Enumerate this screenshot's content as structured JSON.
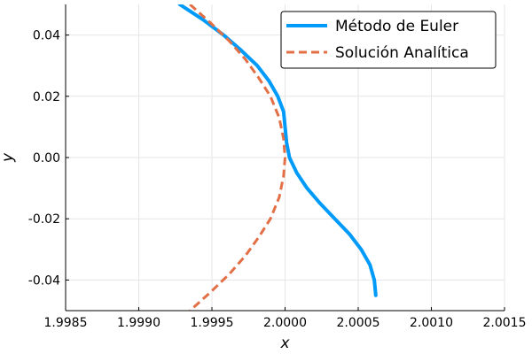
{
  "chart_data": {
    "type": "line",
    "title": "",
    "xlabel": "x",
    "ylabel": "y",
    "xlim": [
      1.9985,
      2.0015
    ],
    "ylim": [
      -0.05,
      0.05
    ],
    "x_ticks": [
      1.9985,
      1.999,
      1.9995,
      2.0,
      2.0005,
      2.001,
      2.0015
    ],
    "x_tick_labels": [
      "1.9985",
      "1.9990",
      "1.9995",
      "2.0000",
      "2.0005",
      "2.0010",
      "2.0015"
    ],
    "y_ticks": [
      -0.04,
      -0.02,
      0.0,
      0.02,
      0.04
    ],
    "y_tick_labels": [
      "-0.04",
      "-0.02",
      "0.00",
      "0.02",
      "0.04"
    ],
    "grid": true,
    "legend_position": "top-right",
    "series": [
      {
        "name": "Método de Euler",
        "color": "#009af9",
        "style": "solid",
        "x": [
          1.99928,
          1.99944,
          1.99958,
          1.9997,
          1.99981,
          1.99989,
          1.99995,
          1.99999,
          2.0,
          2.00001,
          2.00003,
          2.00008,
          2.00015,
          2.00024,
          2.00034,
          2.00044,
          2.00052,
          2.00058,
          2.00061,
          2.00062
        ],
        "y": [
          0.05,
          0.045,
          0.04,
          0.035,
          0.03,
          0.025,
          0.02,
          0.015,
          0.01,
          0.005,
          0.0,
          -0.005,
          -0.01,
          -0.015,
          -0.02,
          -0.025,
          -0.03,
          -0.035,
          -0.04,
          -0.045
        ]
      },
      {
        "name": "Solución Analítica",
        "color": "#e26f46",
        "style": "dashed",
        "x": [
          1.99935,
          1.99949,
          1.99962,
          1.99973,
          1.99982,
          1.9999,
          1.99996,
          1.99999,
          2.0,
          1.99999,
          1.99996,
          1.9999,
          1.99982,
          1.99973,
          1.99962,
          1.99949,
          1.99935
        ],
        "y": [
          0.05,
          0.044,
          0.038,
          0.032,
          0.026,
          0.02,
          0.013,
          0.006,
          0.0,
          -0.006,
          -0.013,
          -0.02,
          -0.026,
          -0.032,
          -0.038,
          -0.044,
          -0.05
        ]
      }
    ]
  }
}
